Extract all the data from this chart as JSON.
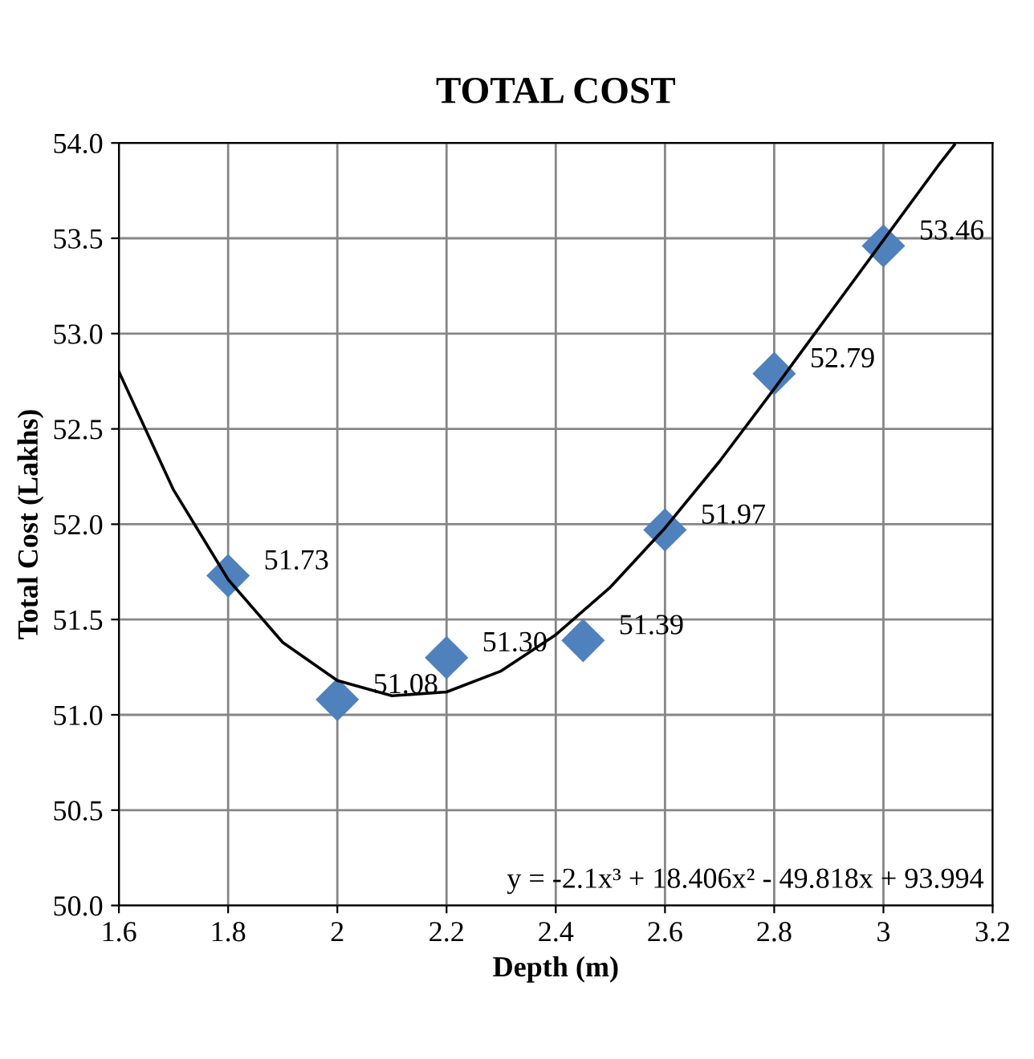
{
  "chart_data": {
    "type": "scatter",
    "title": "TOTAL COST",
    "xlabel": "Depth (m)",
    "ylabel": "Total Cost (Lakhs)",
    "series": [
      {
        "color": "#4f81bd",
        "marker": "diamond",
        "x": [
          1.8,
          2.0,
          2.2,
          2.45,
          2.6,
          2.8,
          3.0
        ],
        "values": [
          51.73,
          51.08,
          51.3,
          51.39,
          51.97,
          52.79,
          53.46
        ],
        "value_labels": [
          "51.73",
          "51.08",
          "51.30",
          "51.39",
          "51.97",
          "52.79",
          "53.46"
        ]
      },
      {
        "type": "line",
        "color": "#000000",
        "marker": "none",
        "line_style": "solid",
        "x": [
          1.6,
          1.7,
          1.8,
          1.9,
          2.0,
          2.1,
          2.2,
          2.3,
          2.4,
          2.5,
          2.6,
          2.7,
          2.8,
          2.9,
          3.0,
          3.1,
          3.13
        ],
        "values": [
          52.8,
          52.18,
          51.71,
          51.38,
          51.18,
          51.1,
          51.12,
          51.23,
          51.42,
          51.67,
          51.98,
          52.33,
          52.71,
          53.1,
          53.49,
          53.88,
          53.99
        ]
      }
    ],
    "annotations": [
      "y = -2.1x³ + 18.406x² - 49.818x + 93.994"
    ],
    "xlim": [
      1.6,
      3.2
    ],
    "ylim": [
      50,
      54
    ],
    "xticks": [
      1.6,
      1.8,
      {
        "value": 2,
        "label": "2"
      },
      2.2,
      2.4,
      2.6,
      2.8,
      {
        "value": 3,
        "label": "3"
      },
      3.2
    ],
    "yticks": [
      {
        "value": 50,
        "label": "50.0"
      },
      50.5,
      {
        "value": 51,
        "label": "51.0"
      },
      51.5,
      {
        "value": 52,
        "label": "52.0"
      },
      52.5,
      {
        "value": 53,
        "label": "53.0"
      },
      53.5,
      {
        "value": 54,
        "label": "54.0"
      }
    ],
    "grid": true,
    "legend": false
  }
}
